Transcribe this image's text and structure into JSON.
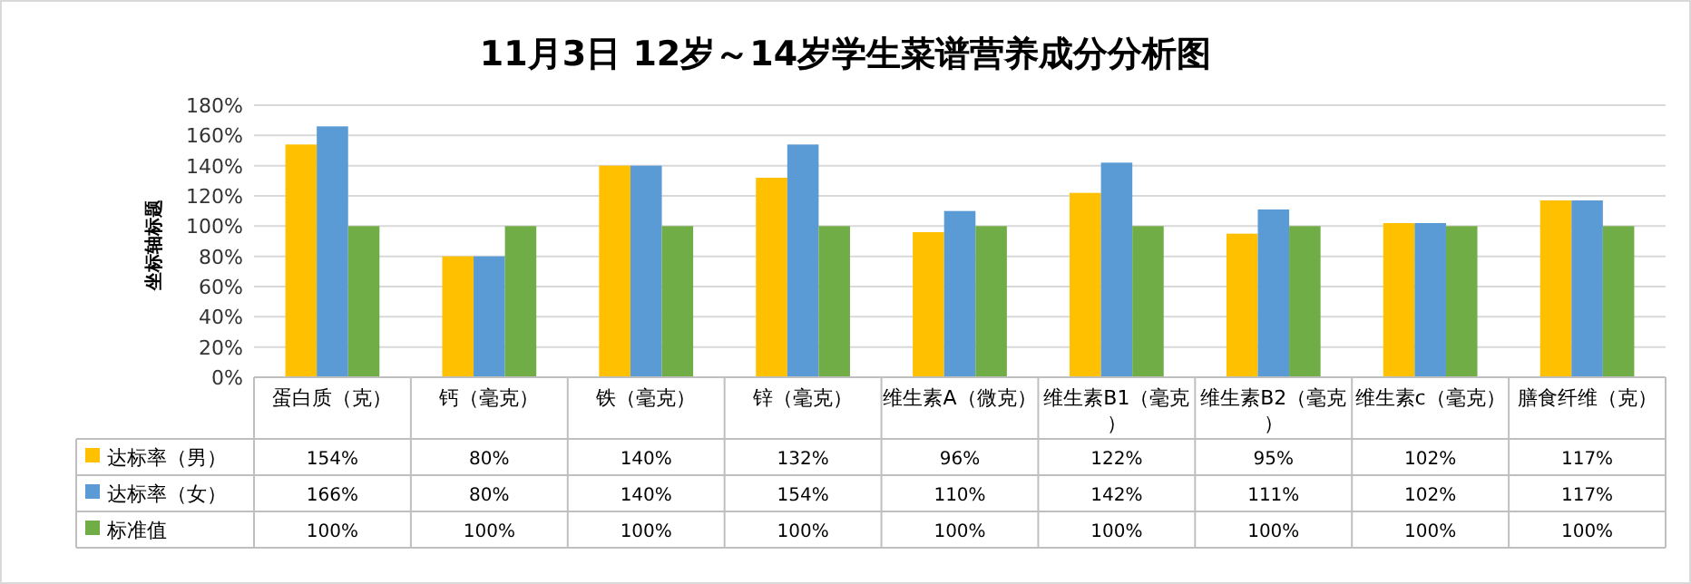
{
  "chart_data": {
    "type": "bar",
    "title": "11月3日 12岁～14岁学生菜谱营养成分分析图",
    "ylabel": "坐标轴标题",
    "categories": [
      "蛋白质（克）",
      "钙（毫克）",
      "铁（毫克）",
      "锌（毫克）",
      "维生素A（微克）",
      "维生素B1（毫克）",
      "维生素B2（毫克）",
      "维生素c（毫克）",
      "膳食纤维（克）"
    ],
    "series": [
      {
        "name": "达标率（男）",
        "color": "#ffc000",
        "values": [
          154,
          80,
          140,
          132,
          96,
          122,
          95,
          102,
          117
        ],
        "value_labels": [
          "154%",
          "80%",
          "140%",
          "132%",
          "96%",
          "122%",
          "95%",
          "102%",
          "117%"
        ]
      },
      {
        "name": "达标率（女）",
        "color": "#5b9bd5",
        "values": [
          166,
          80,
          140,
          154,
          110,
          142,
          111,
          102,
          117
        ],
        "value_labels": [
          "166%",
          "80%",
          "140%",
          "154%",
          "110%",
          "142%",
          "111%",
          "102%",
          "117%"
        ]
      },
      {
        "name": "标准值",
        "color": "#70ad47",
        "values": [
          100,
          100,
          100,
          100,
          100,
          100,
          100,
          100,
          100
        ],
        "value_labels": [
          "100%",
          "100%",
          "100%",
          "100%",
          "100%",
          "100%",
          "100%",
          "100%",
          "100%"
        ]
      }
    ],
    "ylim": [
      0,
      180
    ],
    "yticks": [
      {
        "value": 0,
        "label": "0%"
      },
      {
        "value": 20,
        "label": "20%"
      },
      {
        "value": 40,
        "label": "40%"
      },
      {
        "value": 60,
        "label": "60%"
      },
      {
        "value": 80,
        "label": "80%"
      },
      {
        "value": 100,
        "label": "100%"
      },
      {
        "value": 120,
        "label": "120%"
      },
      {
        "value": 140,
        "label": "140%"
      },
      {
        "value": 160,
        "label": "160%"
      },
      {
        "value": 180,
        "label": "180%"
      }
    ],
    "grid": "y",
    "legend": "bottom"
  }
}
